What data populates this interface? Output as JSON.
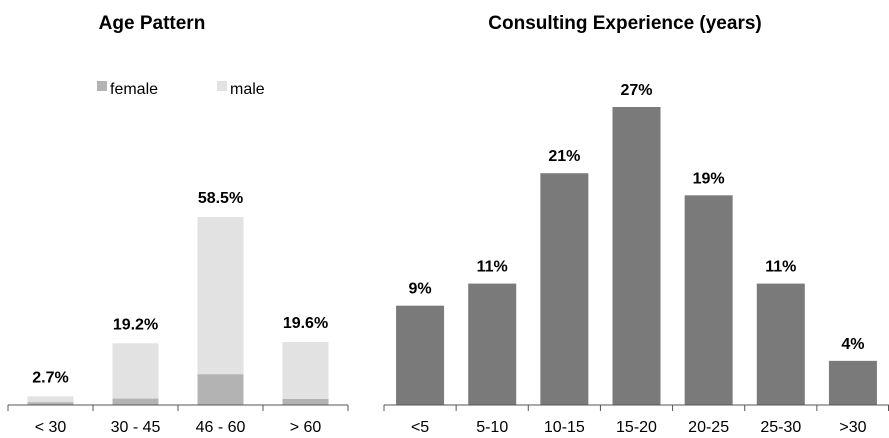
{
  "chart_data": [
    {
      "type": "bar",
      "stacked": true,
      "title": "Age Pattern",
      "categories": [
        "< 30",
        "30 - 45",
        "46 - 60",
        "> 60"
      ],
      "series": [
        {
          "name": "female",
          "values": [
            0.9,
            2.0,
            9.6,
            1.9
          ],
          "color": "#b3b3b3"
        },
        {
          "name": "male",
          "values": [
            1.8,
            17.2,
            48.9,
            17.7
          ],
          "color": "#e2e2e2"
        }
      ],
      "totals": [
        2.7,
        19.2,
        58.5,
        19.6
      ],
      "data_labels": [
        "2.7%",
        "19.2%",
        "58.5%",
        "19.6%"
      ],
      "ylim": [
        0,
        60
      ],
      "grid": false,
      "legend": "top-left"
    },
    {
      "type": "bar",
      "title": "Consulting Experience (years)",
      "categories": [
        "<5",
        "5-10",
        "10-15",
        "15-20",
        "20-25",
        "25-30",
        ">30"
      ],
      "values": [
        9,
        11,
        21,
        27,
        19,
        11,
        4
      ],
      "data_labels": [
        "9%",
        "11%",
        "21%",
        "27%",
        "19%",
        "11%",
        "4%"
      ],
      "color": "#7a7a7a",
      "ylim": [
        0,
        27
      ],
      "grid": false,
      "legend": "none"
    }
  ]
}
